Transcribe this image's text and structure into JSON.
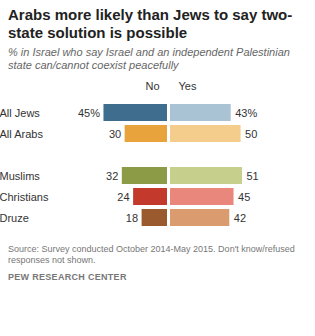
{
  "chart_data": {
    "type": "bar",
    "orientation": "horizontal",
    "title": "Arabs more likely than Jews to say two-state solution is possible",
    "subtitle": "% in Israel who say Israel and an independent Palestinian state can/cannot coexist peacefully",
    "categories": [
      "All Jews",
      "All Arabs",
      "Muslims",
      "Christians",
      "Druze"
    ],
    "series": [
      {
        "name": "No",
        "values": [
          45,
          30,
          32,
          24,
          18
        ],
        "value_labels": [
          "45%",
          "30",
          "32",
          "24",
          "18"
        ],
        "colors": [
          "#3e6d8e",
          "#e8a33d",
          "#8c9b46",
          "#c33a2c",
          "#9b5a2e"
        ]
      },
      {
        "name": "Yes",
        "values": [
          43,
          50,
          51,
          45,
          42
        ],
        "value_labels": [
          "43%",
          "50",
          "51",
          "45",
          "42"
        ],
        "colors": [
          "#a9c3d5",
          "#f4cd8c",
          "#c6cf8b",
          "#e9877c",
          "#da9b6e"
        ]
      }
    ],
    "data_labels": true,
    "tick_labels": "y",
    "source": "Source: Survey conducted October 2014-May 2015. Don't know/refused responses not shown.",
    "credit": "PEW RESEARCH CENTER"
  }
}
